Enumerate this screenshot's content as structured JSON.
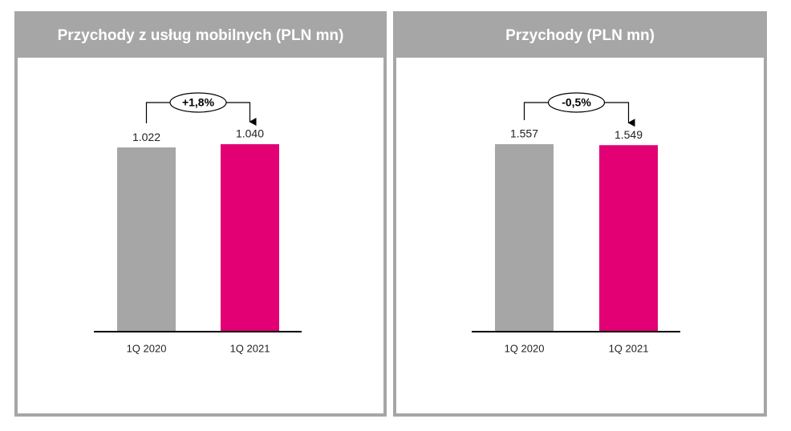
{
  "chart_data": [
    {
      "type": "bar",
      "title": "Przychody  z usług mobilnych (PLN mn)",
      "categories": [
        "1Q 2020",
        "1Q 2021"
      ],
      "values": [
        1022,
        1040
      ],
      "value_labels": [
        "1.022",
        "1.040"
      ],
      "colors": [
        "#a6a6a6",
        "#e20074"
      ],
      "annotation": "+1,8%"
    },
    {
      "type": "bar",
      "title": "Przychody  (PLN mn)",
      "categories": [
        "1Q 2020",
        "1Q 2021"
      ],
      "values": [
        1557,
        1549
      ],
      "value_labels": [
        "1.557",
        "1.549"
      ],
      "colors": [
        "#a6a6a6",
        "#e20074"
      ],
      "annotation": "-0,5%"
    }
  ]
}
